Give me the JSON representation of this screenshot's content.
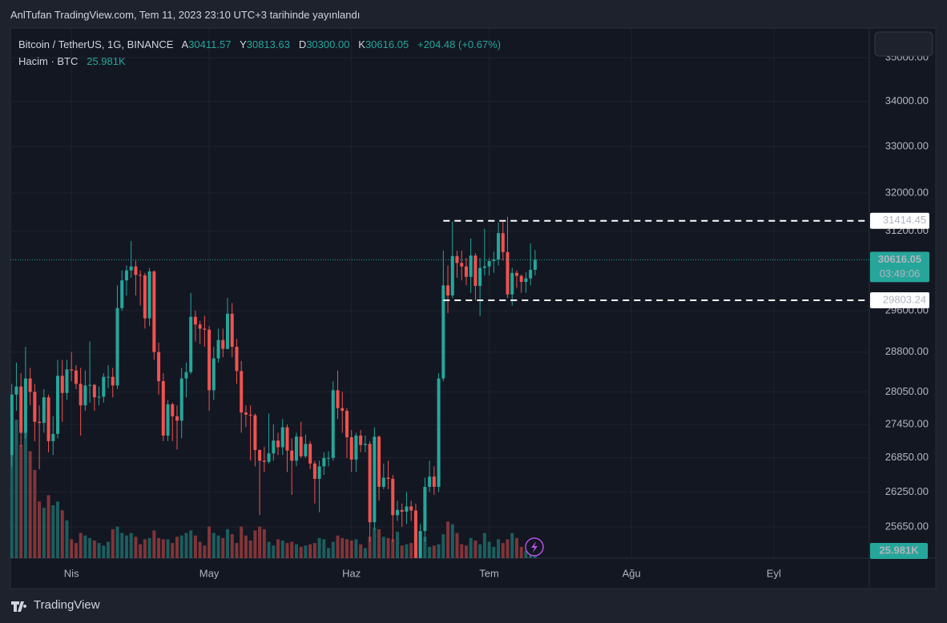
{
  "watermark": "AnlTufan TradingView.com, Tem 11, 2023 23:10 UTC+3 tarihinde yayınlandı",
  "footer": "TradingView",
  "legend": {
    "symbol": "Bitcoin / TetherUS, 1G, BINANCE",
    "open_label": "A",
    "open": "30411.57",
    "high_label": "Y",
    "high": "30813.63",
    "low_label": "D",
    "low": "30300.00",
    "close_label": "K",
    "close": "30616.05",
    "change": "+204.48 (+0.67%)",
    "volume_title": "Hacim · BTC",
    "volume": "25.981K"
  },
  "chart_data": {
    "type": "candlestick",
    "log_scale": true,
    "grid": true,
    "up_color": "#26a69a",
    "down_color": "#ef5350",
    "xlim": [
      -0.3,
      186.8
    ],
    "xticks": [
      {
        "value": 13,
        "label": "Nis"
      },
      {
        "value": 43,
        "label": "May"
      },
      {
        "value": 74,
        "label": "Haz"
      },
      {
        "value": 104,
        "label": "Tem"
      },
      {
        "value": 135,
        "label": "Ağu"
      },
      {
        "value": 166,
        "label": "Eyl"
      }
    ],
    "ylim": [
      25125,
      35694
    ],
    "yticks": [
      {
        "value": 35000,
        "label": "35000.00"
      },
      {
        "value": 34000,
        "label": "34000.00"
      },
      {
        "value": 33000,
        "label": "33000.00"
      },
      {
        "value": 32000,
        "label": "32000.00"
      },
      {
        "value": 31200,
        "label": "31200.00"
      },
      {
        "value": 29600,
        "label": "29600.00"
      },
      {
        "value": 28800,
        "label": "28800.00"
      },
      {
        "value": 28050,
        "label": "28050.00"
      },
      {
        "value": 27450,
        "label": "27450.00"
      },
      {
        "value": 26850,
        "label": "26850.00"
      },
      {
        "value": 26250,
        "label": "26250.00"
      },
      {
        "value": 25650,
        "label": "25650.00"
      }
    ],
    "open": [
      26900,
      28000,
      28150,
      27300,
      28300,
      28050,
      27500,
      27480,
      27950,
      27150,
      27280,
      28350,
      28030,
      28470,
      28450,
      28200,
      27800,
      28170,
      28180,
      27950,
      27960,
      28330,
      28330,
      28170,
      29650,
      30200,
      30400,
      30480,
      30310,
      30300,
      29450,
      30380,
      28800,
      28250,
      27250,
      27820,
      27600,
      27520,
      28300,
      28420,
      29480,
      29330,
      29250,
      29230,
      28080,
      28680,
      29030,
      28860,
      29540,
      28900,
      28440,
      27670,
      27630,
      27620,
      26990,
      26800,
      26780,
      26930,
      27160,
      27040,
      27400,
      26980,
      26800,
      27230,
      26880,
      27100,
      26750,
      26480,
      26700,
      26850,
      26850,
      28080,
      27750,
      27700,
      27220,
      26820,
      27250,
      27080,
      27100,
      25730,
      27230,
      26340,
      26500,
      26480,
      25850,
      25940,
      25910,
      26000,
      25930,
      25120,
      25580,
      26340,
      26520,
      26340,
      28300,
      30100,
      29900,
      30690,
      30550,
      30480,
      30270,
      30700,
      30090,
      30450,
      30480,
      30590,
      30620,
      31160,
      30770,
      29920,
      30350,
      30290,
      30170,
      30240,
      30411.57
    ],
    "high": [
      28200,
      28600,
      28400,
      28900,
      28500,
      28200,
      27800,
      28100,
      28000,
      27600,
      28650,
      28650,
      28650,
      28800,
      28550,
      28500,
      28450,
      29000,
      28200,
      28150,
      28400,
      28550,
      28500,
      30100,
      30400,
      30500,
      31000,
      30600,
      30400,
      30350,
      30450,
      30400,
      28980,
      28400,
      27900,
      27850,
      27800,
      28500,
      28600,
      29950,
      29600,
      29400,
      29500,
      29300,
      28900,
      29250,
      29250,
      29850,
      29750,
      29050,
      28630,
      27800,
      27800,
      27650,
      27000,
      27050,
      27650,
      27450,
      27300,
      27550,
      27450,
      27200,
      27300,
      27500,
      27270,
      27150,
      26800,
      26800,
      26950,
      26970,
      28250,
      28450,
      28050,
      27750,
      27350,
      27300,
      27350,
      27250,
      27150,
      27400,
      27250,
      26750,
      26800,
      26550,
      26100,
      26050,
      26250,
      26100,
      26050,
      25700,
      26500,
      26800,
      26700,
      28400,
      30800,
      30500,
      31400,
      30800,
      30800,
      30650,
      31050,
      30750,
      30650,
      31250,
      30650,
      30780,
      31380,
      31400,
      31500,
      30450,
      30400,
      30320,
      30360,
      30950,
      30813.63
    ],
    "low": [
      26700,
      27700,
      27050,
      27200,
      27800,
      27150,
      26650,
      27300,
      26950,
      26900,
      27200,
      27500,
      27900,
      28250,
      28100,
      27250,
      27700,
      27850,
      27700,
      27800,
      27850,
      28120,
      27950,
      28100,
      29600,
      29900,
      30250,
      29900,
      29700,
      29250,
      29300,
      28650,
      28000,
      27150,
      27150,
      27150,
      27000,
      27200,
      27950,
      28380,
      29000,
      28950,
      28900,
      27700,
      27900,
      28600,
      28700,
      28850,
      28700,
      28200,
      27300,
      27400,
      26800,
      26700,
      25850,
      26600,
      26750,
      26800,
      26900,
      26900,
      26600,
      26200,
      26700,
      26850,
      26850,
      26650,
      26050,
      25900,
      26550,
      26700,
      26800,
      27550,
      27300,
      26850,
      26600,
      26600,
      26950,
      26950,
      25400,
      25600,
      26100,
      26300,
      26300,
      25400,
      25750,
      25650,
      25700,
      25750,
      24900,
      24950,
      25400,
      26250,
      26200,
      26250,
      28250,
      29550,
      29850,
      30250,
      30200,
      30100,
      29950,
      29800,
      29500,
      30300,
      30300,
      30350,
      30500,
      30600,
      29850,
      29700,
      30050,
      29950,
      29950,
      30100,
      30300
    ],
    "close": [
      28000,
      28150,
      27300,
      28300,
      28050,
      27500,
      27480,
      27950,
      27150,
      27280,
      28350,
      28030,
      28470,
      28450,
      28200,
      27800,
      28170,
      28180,
      27950,
      27960,
      28330,
      28330,
      28170,
      29650,
      30200,
      30400,
      30480,
      30310,
      30300,
      29450,
      30380,
      28800,
      28250,
      27250,
      27820,
      27600,
      27520,
      28300,
      28420,
      29480,
      29330,
      29250,
      29230,
      28080,
      28680,
      29030,
      28860,
      29540,
      28900,
      28440,
      27670,
      27630,
      27620,
      26990,
      26800,
      26780,
      26930,
      27160,
      27040,
      27400,
      26980,
      26800,
      27230,
      26880,
      27100,
      26750,
      26480,
      26700,
      26850,
      26850,
      28080,
      27750,
      27700,
      27220,
      26820,
      27250,
      27080,
      27100,
      25730,
      27230,
      26340,
      26500,
      26480,
      25850,
      25940,
      25910,
      26000,
      25930,
      25120,
      25580,
      26340,
      26520,
      26340,
      28300,
      30100,
      29900,
      30690,
      30550,
      30480,
      30270,
      30700,
      30090,
      30450,
      30480,
      30590,
      30620,
      31160,
      30770,
      29920,
      30350,
      30290,
      30170,
      30240,
      30411.57,
      30616.05
    ],
    "volume": [
      1200000,
      1100000,
      900000,
      1000000,
      850000,
      700000,
      450000,
      400000,
      500000,
      420000,
      450000,
      380000,
      300000,
      150000,
      120000,
      200000,
      180000,
      160000,
      140000,
      120000,
      100000,
      130000,
      230000,
      250000,
      200000,
      180000,
      200000,
      170000,
      110000,
      150000,
      160000,
      220000,
      160000,
      150000,
      150000,
      120000,
      170000,
      180000,
      200000,
      220000,
      180000,
      130000,
      100000,
      250000,
      200000,
      180000,
      160000,
      230000,
      190000,
      120000,
      250000,
      180000,
      140000,
      220000,
      250000,
      230000,
      130000,
      100000,
      150000,
      140000,
      120000,
      130000,
      110000,
      90000,
      100000,
      110000,
      120000,
      160000,
      150000,
      80000,
      130000,
      180000,
      160000,
      150000,
      140000,
      150000,
      110000,
      80000,
      170000,
      240000,
      230000,
      170000,
      160000,
      150000,
      210000,
      100000,
      110000,
      120000,
      170000,
      210000,
      170000,
      90000,
      100000,
      110000,
      190000,
      290000,
      270000,
      200000,
      110000,
      100000,
      160000,
      140000,
      110000,
      200000,
      130000,
      90000,
      150000,
      120000,
      150000,
      200000,
      160000,
      90000,
      60000,
      80000,
      25981
    ],
    "vlim": [
      0,
      1400000
    ],
    "volume_label": "25.981K",
    "countdown": "03:49:06",
    "hlines": [
      {
        "value": 31414.45,
        "start": 94
      },
      {
        "value": 29803.24,
        "start": 94
      }
    ]
  }
}
